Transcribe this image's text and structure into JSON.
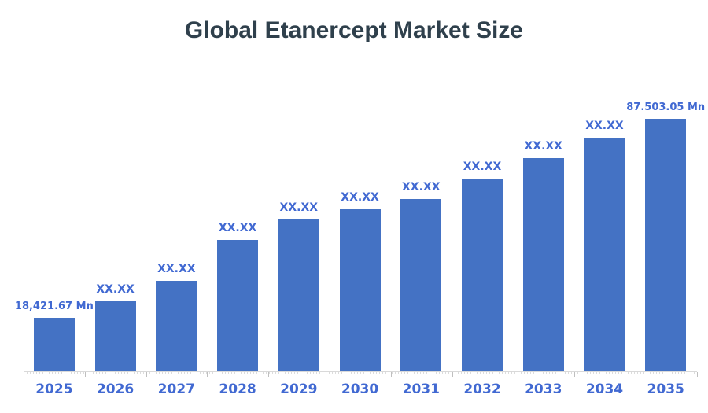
{
  "colors": {
    "bar_fill": "#4472C4",
    "data_label": "#4169D2",
    "year_label": "#4169D2",
    "title_text": "#2F404C",
    "axis_line": "#D9D9D9",
    "tick": "#BFBFBF",
    "background": "#FFFFFF"
  },
  "chart_data": {
    "type": "bar",
    "title": "Global Etanercept Market Size",
    "xlabel": "",
    "ylabel": "",
    "unit": "Mn",
    "categories": [
      "2025",
      "2026",
      "2027",
      "2028",
      "2029",
      "2030",
      "2031",
      "2032",
      "2033",
      "2034",
      "2035"
    ],
    "values": [
      18421.67,
      24400,
      31500,
      45500,
      52700,
      56200,
      59800,
      66700,
      73800,
      80900,
      87503.05
    ],
    "values_note": "Only 2025 and 2035 are labeled on the chart; intermediate values are masked as XX.XX and estimated from bar heights",
    "value_labels": [
      "18,421.67 Mn",
      "XX.XX",
      "XX.XX",
      "XX.XX",
      "XX.XX",
      "XX.XX",
      "XX.XX",
      "XX.XX",
      "XX.XX",
      "XX.XX",
      "87.503.05 Mn"
    ],
    "first_bar_label": "18,421.67 Mn",
    "last_bar_label": "87.503.05 Mn",
    "masked_label": "XX.XX",
    "ylim": [
      0,
      90000
    ],
    "grid": false,
    "legend": false,
    "y_axis_shown": false
  }
}
